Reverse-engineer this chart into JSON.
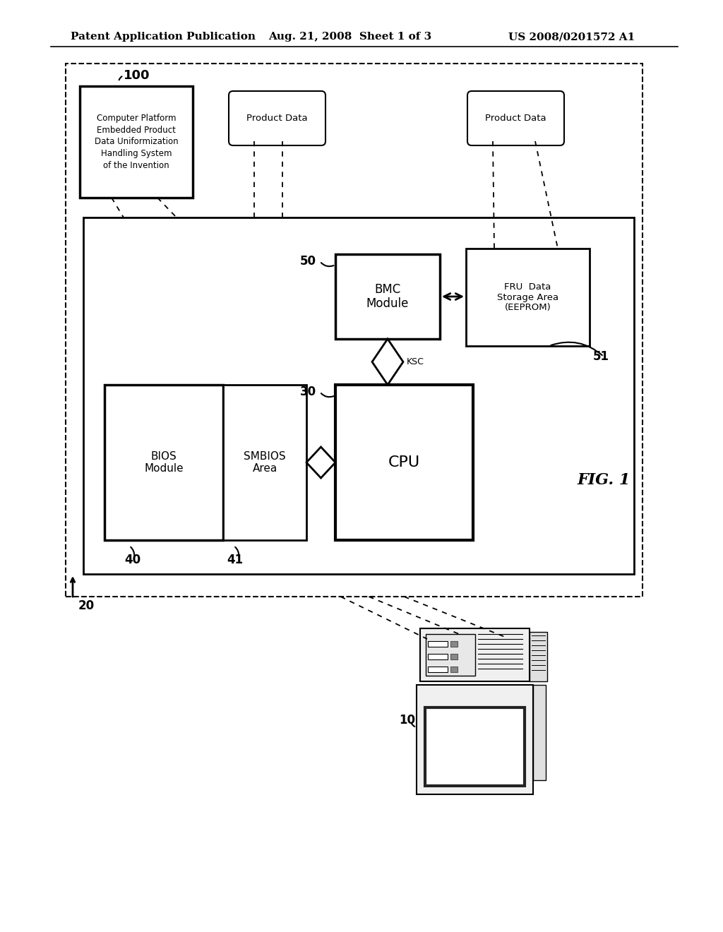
{
  "bg_color": "#ffffff",
  "header_text": "Patent Application Publication",
  "header_date": "Aug. 21, 2008  Sheet 1 of 3",
  "header_patent": "US 2008/0201572 A1",
  "fig_label": "FIG. 1",
  "label_100": "100",
  "label_20": "20",
  "label_40": "40",
  "label_41": "41",
  "label_30": "30",
  "label_50": "50",
  "label_51": "51",
  "label_10": "10",
  "box_100_text": "Computer Platform\nEmbedded Product\nData Uniformization\nHandling System\nof the Invention",
  "box_prod_data1_text": "Product Data",
  "box_prod_data2_text": "Product Data",
  "box_bmc_text": "BMC\nModule",
  "box_fru_text": "FRU  Data\nStorage Area\n(EEPROM)",
  "box_cpu_text": "CPU",
  "box_bios_text": "BIOS\nModule",
  "box_smbios_text": "SMBIOS\nArea",
  "label_ksc": "KSC"
}
